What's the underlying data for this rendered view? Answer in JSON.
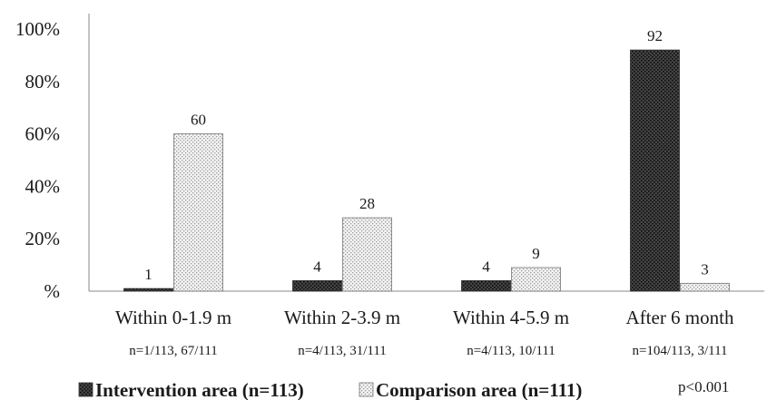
{
  "chart_data": {
    "type": "bar",
    "categories": [
      "Within 0-1.9 m",
      "Within 2-3.9 m",
      "Within 4-5.9 m",
      "After 6 month"
    ],
    "category_notes": [
      "n=1/113, 67/111",
      "n=4/113, 31/111",
      "n=4/113, 10/111",
      "n=104/113, 3/111"
    ],
    "series": [
      {
        "name": "Intervention area (n=113)",
        "values": [
          1,
          4,
          4,
          92
        ],
        "labels": [
          "1",
          "4",
          "4",
          "92"
        ],
        "pattern": "dark-dotted"
      },
      {
        "name": "Comparison area (n=111)",
        "values": [
          60,
          28,
          9,
          3
        ],
        "labels": [
          "60",
          "28",
          "9",
          "3"
        ],
        "pattern": "light-dotted"
      }
    ],
    "ylim": [
      0,
      100
    ],
    "yticks": [
      0,
      20,
      40,
      60,
      80,
      100
    ],
    "ytick_labels": [
      "%",
      "20%",
      "40%",
      "60%",
      "80%",
      "100%"
    ],
    "grid": false,
    "legend_position": "bottom-left",
    "annotation": "p<0.001"
  },
  "colors": {
    "intervention": "#3a3a3a",
    "comparison": "#e6e6e6",
    "axis": "#888888"
  }
}
